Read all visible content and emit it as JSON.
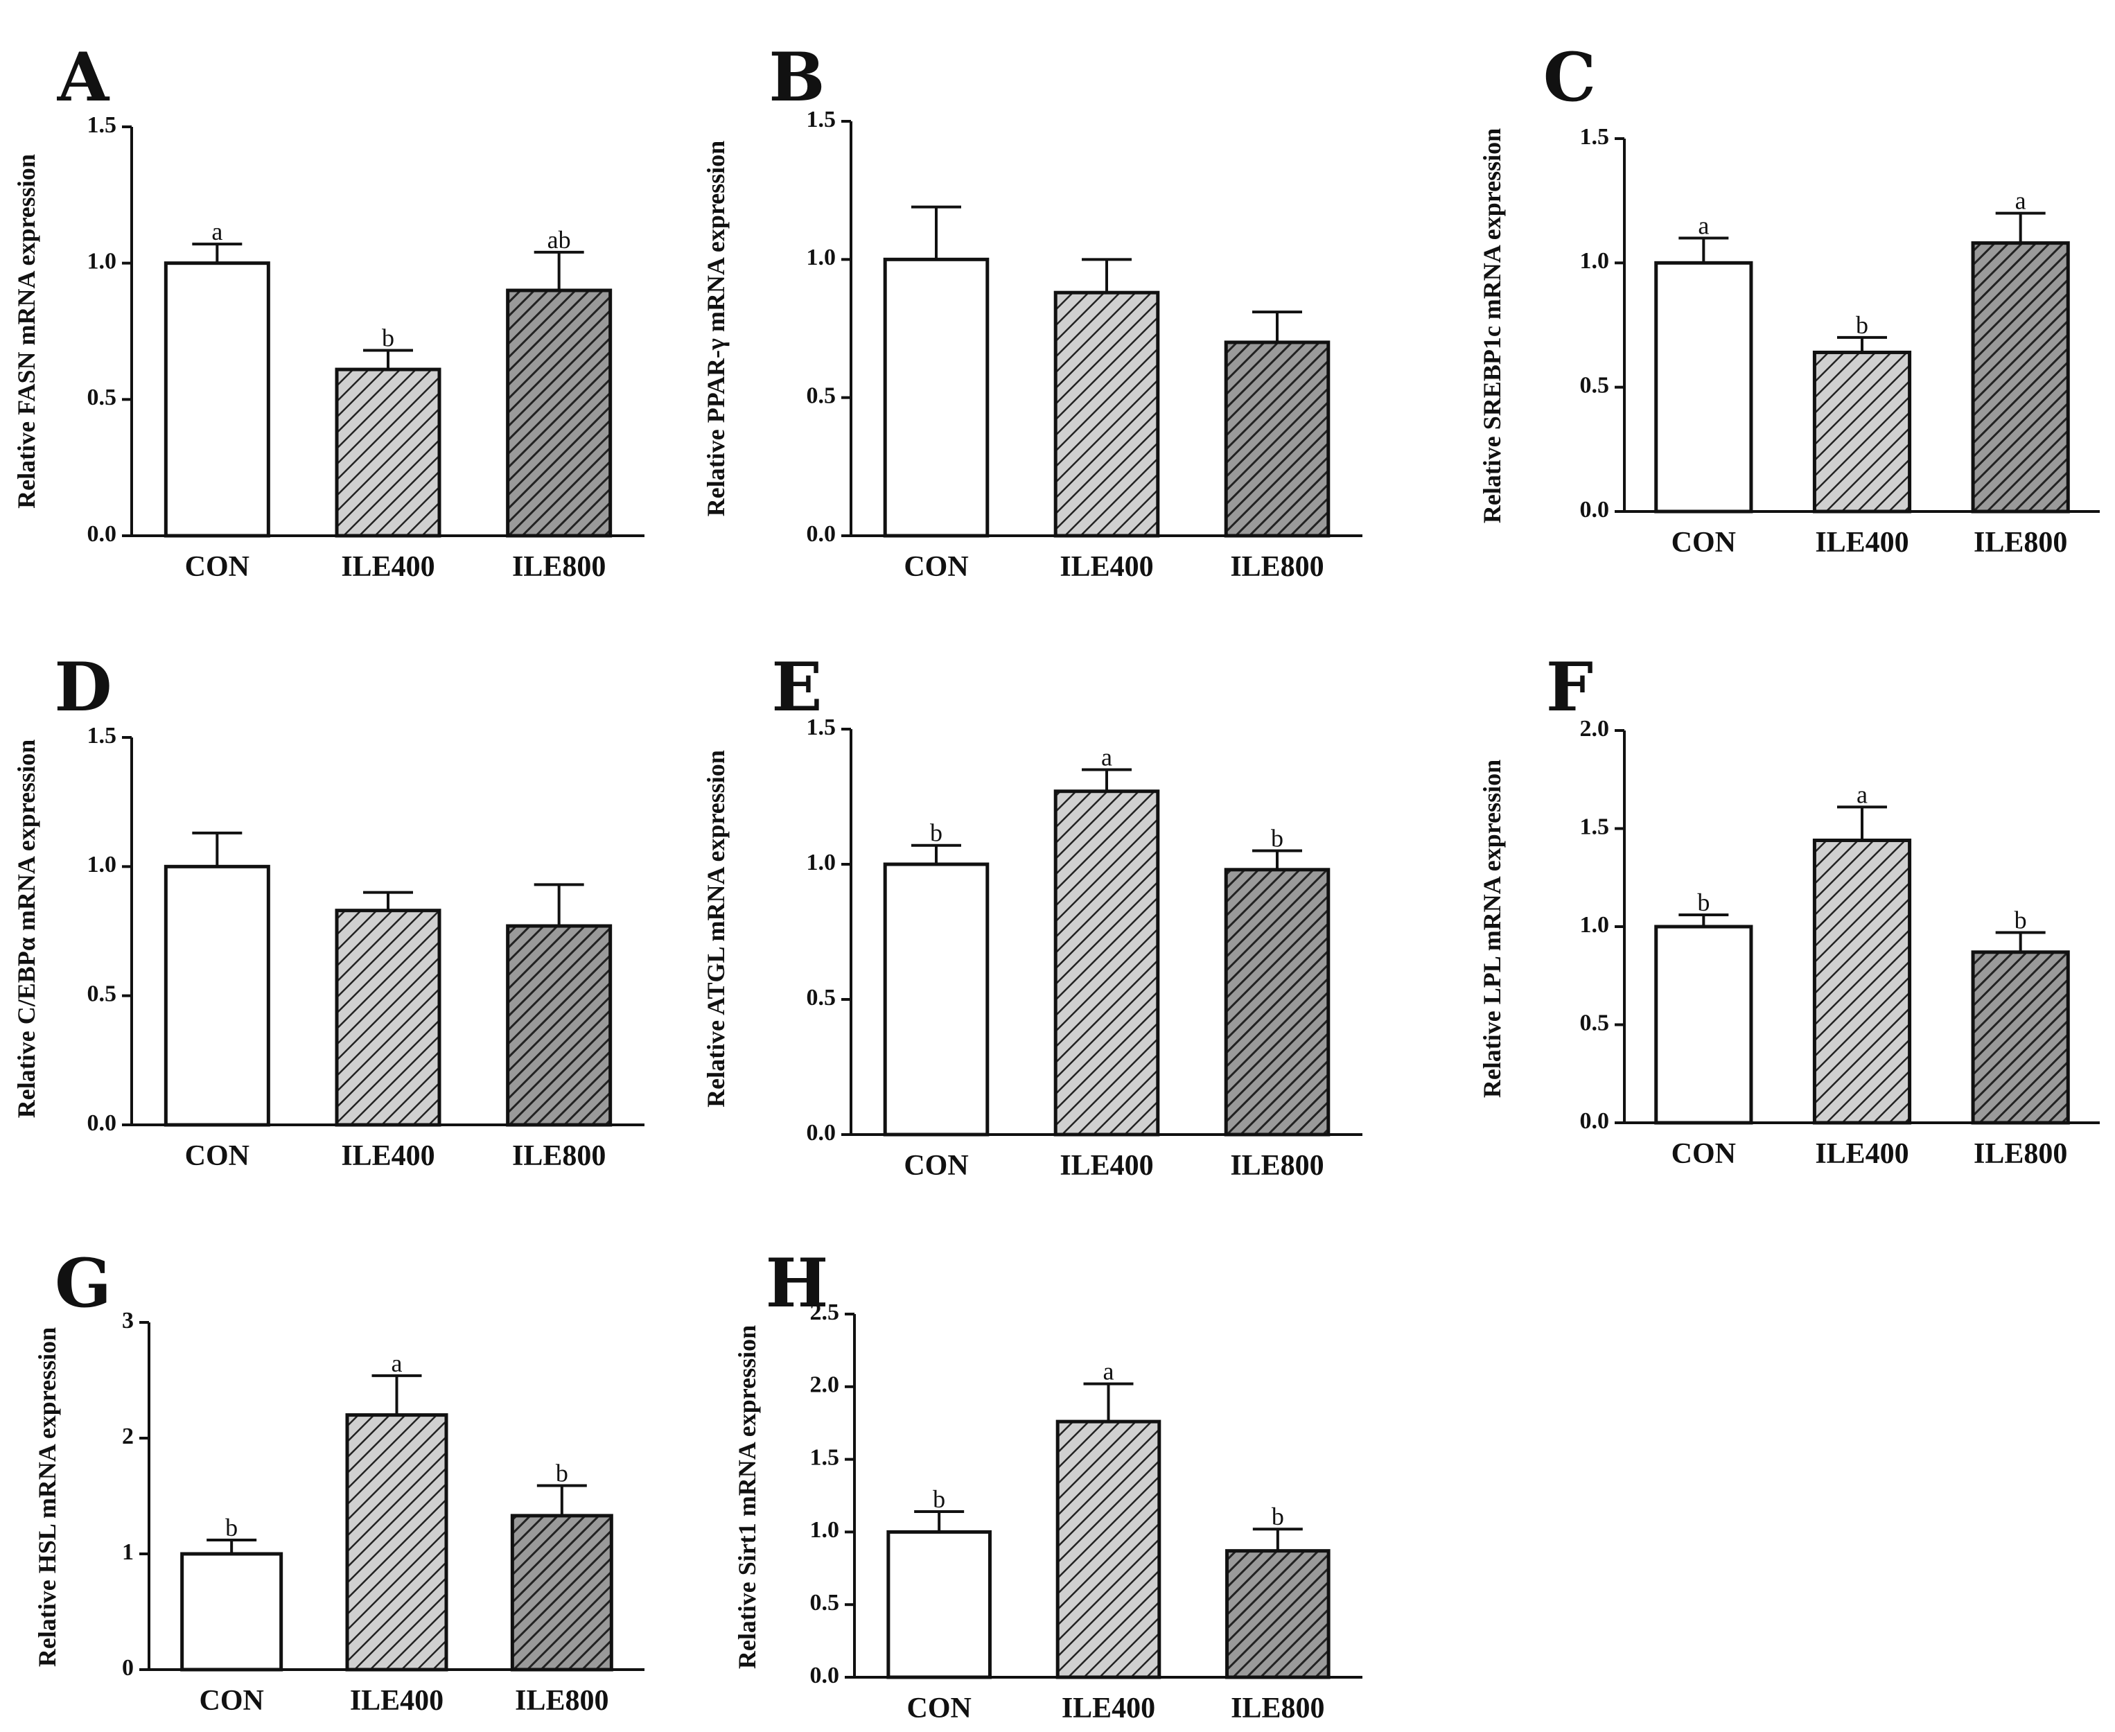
{
  "figure": {
    "colors": {
      "CON": "#ffffff",
      "ILE400": "#c8c8c8",
      "ILE800": "#8c8c8c",
      "axis": "#111111",
      "hatch": "#222222"
    }
  },
  "chart_data": [
    {
      "panel": "A",
      "type": "bar",
      "categories": [
        "CON",
        "ILE400",
        "ILE800"
      ],
      "values": [
        1.0,
        0.61,
        0.9
      ],
      "errors": [
        0.07,
        0.07,
        0.14
      ],
      "sig": [
        "a",
        "b",
        "ab"
      ],
      "ylabel": "Relative FASN mRNA expression",
      "ylim": [
        0,
        1.5
      ],
      "yticks": [
        "0.0",
        "0.5",
        "1.0",
        "1.5"
      ]
    },
    {
      "panel": "B",
      "type": "bar",
      "categories": [
        "CON",
        "ILE400",
        "ILE800"
      ],
      "values": [
        1.0,
        0.88,
        0.7
      ],
      "errors": [
        0.19,
        0.12,
        0.11
      ],
      "sig": [
        "",
        "",
        ""
      ],
      "ylabel": "Relative PPAR-γ mRNA expression",
      "ylim": [
        0,
        1.5
      ],
      "yticks": [
        "0.0",
        "0.5",
        "1.0",
        "1.5"
      ]
    },
    {
      "panel": "C",
      "type": "bar",
      "categories": [
        "CON",
        "ILE400",
        "ILE800"
      ],
      "values": [
        1.0,
        0.64,
        1.08
      ],
      "errors": [
        0.1,
        0.06,
        0.12
      ],
      "sig": [
        "a",
        "b",
        "a"
      ],
      "ylabel": "Relative SREBP1c mRNA expression",
      "ylim": [
        0,
        1.5
      ],
      "yticks": [
        "0.0",
        "0.5",
        "1.0",
        "1.5"
      ]
    },
    {
      "panel": "D",
      "type": "bar",
      "categories": [
        "CON",
        "ILE400",
        "ILE800"
      ],
      "values": [
        1.0,
        0.83,
        0.77
      ],
      "errors": [
        0.13,
        0.07,
        0.16
      ],
      "sig": [
        "",
        "",
        ""
      ],
      "ylabel": "Relative C/EBPα mRNA expression",
      "ylim": [
        0,
        1.5
      ],
      "yticks": [
        "0.0",
        "0.5",
        "1.0",
        "1.5"
      ]
    },
    {
      "panel": "E",
      "type": "bar",
      "categories": [
        "CON",
        "ILE400",
        "ILE800"
      ],
      "values": [
        1.0,
        1.27,
        0.98
      ],
      "errors": [
        0.07,
        0.08,
        0.07
      ],
      "sig": [
        "b",
        "a",
        "b"
      ],
      "ylabel": "Relative ATGL mRNA expression",
      "ylim": [
        0,
        1.5
      ],
      "yticks": [
        "0.0",
        "0.5",
        "1.0",
        "1.5"
      ]
    },
    {
      "panel": "F",
      "type": "bar",
      "categories": [
        "CON",
        "ILE400",
        "ILE800"
      ],
      "values": [
        1.0,
        1.44,
        0.87
      ],
      "errors": [
        0.06,
        0.17,
        0.1
      ],
      "sig": [
        "b",
        "a",
        "b"
      ],
      "ylabel": "Relative LPL mRNA expression",
      "ylim": [
        0,
        2.0
      ],
      "yticks": [
        "0.0",
        "0.5",
        "1.0",
        "1.5",
        "2.0"
      ]
    },
    {
      "panel": "G",
      "type": "bar",
      "categories": [
        "CON",
        "ILE400",
        "ILE800"
      ],
      "values": [
        1.0,
        2.2,
        1.33
      ],
      "errors": [
        0.12,
        0.34,
        0.26
      ],
      "sig": [
        "b",
        "a",
        "b"
      ],
      "ylabel": "Relative HSL mRNA expression",
      "ylim": [
        0,
        3
      ],
      "yticks": [
        "0",
        "1",
        "2",
        "3"
      ]
    },
    {
      "panel": "H",
      "type": "bar",
      "categories": [
        "CON",
        "ILE400",
        "ILE800"
      ],
      "values": [
        1.0,
        1.76,
        0.87
      ],
      "errors": [
        0.14,
        0.26,
        0.15
      ],
      "sig": [
        "b",
        "a",
        "b"
      ],
      "ylabel": "Relative Sirt1 mRNA expression",
      "ylim": [
        0,
        2.5
      ],
      "yticks": [
        "0.0",
        "0.5",
        "1.0",
        "1.5",
        "2.0",
        "2.5"
      ]
    }
  ]
}
